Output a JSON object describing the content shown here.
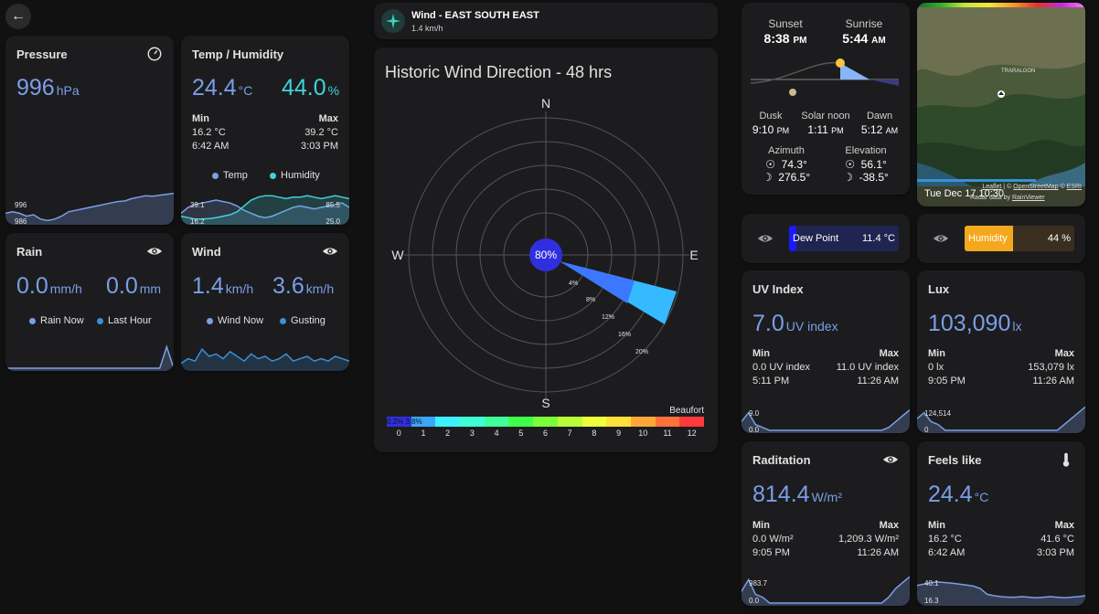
{
  "nav": {
    "back_icon": "arrow-left-icon"
  },
  "pressure": {
    "title": "Pressure",
    "value": "996",
    "unit": "hPa",
    "spark_max": "996",
    "spark_min": "986",
    "spark": [
      0.3,
      0.35,
      0.3,
      0.2,
      0.25,
      0.1,
      0.05,
      0.1,
      0.2,
      0.35,
      0.4,
      0.45,
      0.5,
      0.55,
      0.6,
      0.65,
      0.7,
      0.72,
      0.8,
      0.85,
      0.9,
      0.88,
      0.92,
      0.95,
      0.98
    ]
  },
  "temp": {
    "title": "Temp / Humidity",
    "temp_value": "24.4",
    "temp_unit": "°C",
    "hum_value": "44.0",
    "hum_unit": "%",
    "min_label": "Min",
    "max_label": "Max",
    "min_temp": "16.2 °C",
    "min_time": "6:42 AM",
    "max_temp": "39.2 °C",
    "max_time": "3:03 PM",
    "legend_temp": "Temp",
    "legend_hum": "Humidity",
    "spark_tl": "39.1",
    "spark_bl": "16.2",
    "spark_tr": "85.5",
    "spark_br": "25.0",
    "spark_temp": [
      0.3,
      0.5,
      0.6,
      0.65,
      0.7,
      0.75,
      0.7,
      0.65,
      0.55,
      0.4,
      0.3,
      0.2,
      0.15,
      0.2,
      0.3,
      0.4,
      0.5,
      0.55,
      0.5,
      0.45,
      0.5,
      0.55,
      0.6,
      0.65,
      0.5
    ],
    "spark_hum": [
      0.2,
      0.15,
      0.1,
      0.1,
      0.12,
      0.15,
      0.2,
      0.25,
      0.35,
      0.55,
      0.75,
      0.85,
      0.9,
      0.9,
      0.85,
      0.8,
      0.85,
      0.85,
      0.9,
      0.85,
      0.8,
      0.85,
      0.9,
      0.85,
      0.8
    ]
  },
  "rain": {
    "title": "Rain",
    "icon": "eye-icon",
    "rate_value": "0.0",
    "rate_unit": "mm/h",
    "last_value": "0.0",
    "last_unit": "mm",
    "legend_now": "Rain Now",
    "legend_last": "Last Hour",
    "spark": [
      0,
      0,
      0,
      0,
      0,
      0,
      0,
      0,
      0,
      0,
      0,
      0,
      0,
      0,
      0,
      0,
      0,
      0,
      0,
      0,
      0,
      0,
      0,
      0.9,
      0
    ]
  },
  "wind": {
    "title": "Wind",
    "icon": "eye-icon",
    "speed_value": "1.4",
    "speed_unit": "km/h",
    "gust_value": "3.6",
    "gust_unit": "km/h",
    "legend_now": "Wind Now",
    "legend_gust": "Gusting",
    "spark": [
      0.2,
      0.4,
      0.3,
      0.8,
      0.5,
      0.6,
      0.4,
      0.7,
      0.5,
      0.3,
      0.6,
      0.4,
      0.5,
      0.3,
      0.4,
      0.6,
      0.3,
      0.4,
      0.5,
      0.3,
      0.4,
      0.3,
      0.5,
      0.4,
      0.3
    ]
  },
  "wind_header": {
    "icon": "compass-icon",
    "title": "Wind - EAST SOUTH EAST",
    "subtitle": "1.4 km/h"
  },
  "wind_rose": {
    "title": "Historic Wind Direction - 48 hrs",
    "north": "N",
    "south": "S",
    "east": "E",
    "west": "W",
    "center_label": "80%",
    "rings": [
      "4%",
      "8%",
      "12%",
      "16%",
      "20%"
    ],
    "beaufort_label": "Beaufort",
    "beaufort_bar_text": "0.2% 3.8%",
    "scale_labels": [
      "0",
      "1",
      "2",
      "3",
      "4",
      "5",
      "6",
      "7",
      "8",
      "9",
      "10",
      "11",
      "12"
    ],
    "scale_colors": [
      "#2f2fe0",
      "#3aa7ff",
      "#3ff0ff",
      "#3fffd6",
      "#3fff9a",
      "#3fff4a",
      "#7aff3a",
      "#b8ff3a",
      "#eeff3a",
      "#ffe03a",
      "#ffa83a",
      "#ff703a",
      "#ff3a3a"
    ]
  },
  "sun": {
    "sunset_label": "Sunset",
    "sunset_time": "8:38",
    "sunset_ampm": "PM",
    "sunrise_label": "Sunrise",
    "sunrise_time": "5:44",
    "sunrise_ampm": "AM",
    "dusk_label": "Dusk",
    "dusk_time": "9:10",
    "dusk_ampm": "PM",
    "noon_label": "Solar noon",
    "noon_time": "1:11",
    "noon_ampm": "PM",
    "dawn_label": "Dawn",
    "dawn_time": "5:12",
    "dawn_ampm": "AM",
    "azimuth_label": "Azimuth",
    "azimuth_sun": "74.3°",
    "azimuth_moon": "276.5°",
    "elevation_label": "Elevation",
    "elevation_sun": "56.1°",
    "elevation_moon": "-38.5°"
  },
  "map": {
    "place_label": "TRARALGON",
    "attribution_leaflet": "Leaflet",
    "attribution_osm": "OpenStreetMap",
    "attribution_esri": "ESRI",
    "attribution_radar": "Radar data by",
    "attribution_rainviewer": "RainViewer",
    "timestamp": "Tue Dec 17 10:30"
  },
  "dewpoint": {
    "icon": "eye-icon",
    "label": "Dew Point",
    "value": "11.4 °C",
    "fraction": 0.07
  },
  "humidity_bar": {
    "icon": "eye-icon",
    "label": "Humidity",
    "value": "44 %",
    "fraction": 0.44
  },
  "uv": {
    "title": "UV Index",
    "value": "7.0",
    "unit": "UV index",
    "min_label": "Min",
    "max_label": "Max",
    "min_val": "0.0 UV index",
    "min_time": "5:11 PM",
    "max_val": "11.0 UV index",
    "max_time": "11:26 AM",
    "spark_top": "9.0",
    "spark_bot": "0.0",
    "spark": [
      0.3,
      0.6,
      0.2,
      0.1,
      0,
      0,
      0,
      0,
      0,
      0,
      0,
      0,
      0,
      0,
      0,
      0,
      0,
      0,
      0,
      0,
      0,
      0.1,
      0.3,
      0.5,
      0.7
    ]
  },
  "lux": {
    "title": "Lux",
    "value": "103,090",
    "unit": "lx",
    "min_label": "Min",
    "max_label": "Max",
    "min_val": "0 lx",
    "min_time": "9:05 PM",
    "max_val": "153,079 lx",
    "max_time": "11:26 AM",
    "spark_top": "124,514",
    "spark_bot": "0",
    "spark": [
      0.4,
      0.6,
      0.3,
      0.2,
      0,
      0,
      0,
      0,
      0,
      0,
      0,
      0,
      0,
      0,
      0,
      0,
      0,
      0,
      0,
      0,
      0,
      0.2,
      0.4,
      0.6,
      0.8
    ]
  },
  "radiation": {
    "title": "Raditation",
    "icon": "eye-icon",
    "value": "814.4",
    "unit": "W/m²",
    "min_label": "Min",
    "max_label": "Max",
    "min_val": "0.0 W/m²",
    "min_time": "9:05 PM",
    "max_val": "1,209.3 W/m²",
    "max_time": "11:26 AM",
    "spark_top": "983.7",
    "spark_bot": "0.0",
    "spark": [
      0.4,
      0.8,
      0.3,
      0.2,
      0,
      0,
      0,
      0,
      0,
      0,
      0,
      0,
      0,
      0,
      0,
      0,
      0,
      0,
      0,
      0,
      0,
      0.2,
      0.5,
      0.7,
      0.9
    ]
  },
  "feels": {
    "title": "Feels like",
    "icon": "thermometer-icon",
    "value": "24.4",
    "unit": "°C",
    "min_label": "Min",
    "max_label": "Max",
    "min_val": "16.2 °C",
    "min_time": "6:42 AM",
    "max_val": "41.6 °C",
    "max_time": "3:03 PM",
    "spark_top": "40.1",
    "spark_bot": "16.3",
    "spark": [
      0.6,
      0.65,
      0.7,
      0.72,
      0.7,
      0.68,
      0.65,
      0.62,
      0.58,
      0.5,
      0.3,
      0.25,
      0.22,
      0.2,
      0.2,
      0.22,
      0.2,
      0.18,
      0.2,
      0.22,
      0.2,
      0.18,
      0.2,
      0.22,
      0.25
    ]
  }
}
